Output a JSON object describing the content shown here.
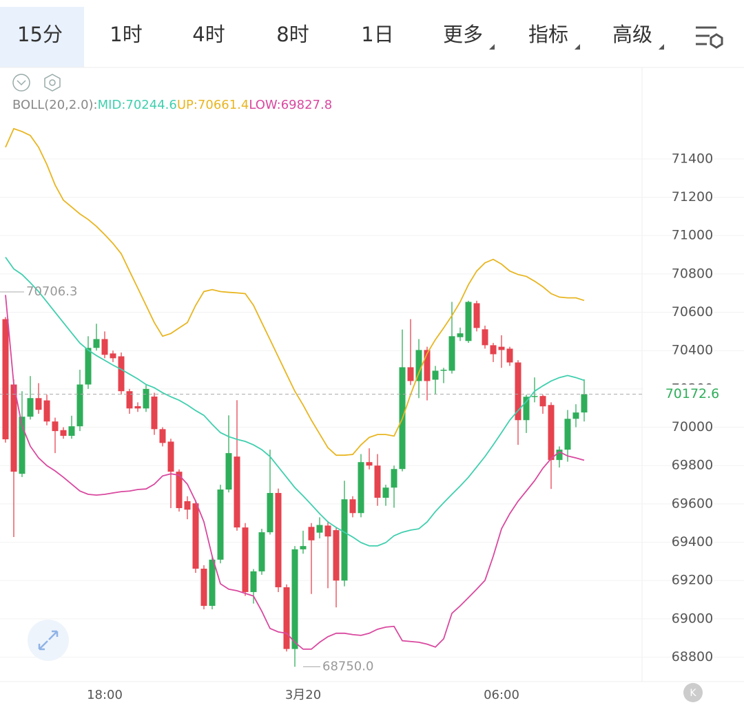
{
  "toolbar": {
    "tabs": [
      "15分",
      "1时",
      "4时",
      "8时",
      "1日",
      "更多",
      "指标",
      "高级"
    ],
    "selected": 0,
    "dropdown_tabs": [
      5,
      6,
      7
    ]
  },
  "k_button": "K",
  "chart_data": {
    "type": "candlestick",
    "indicator": "BOLL(20,2.0):",
    "categories": [
      null,
      null,
      null,
      null,
      null,
      null,
      null,
      null,
      null,
      null,
      null,
      null,
      "18:00",
      null,
      null,
      null,
      null,
      null,
      null,
      null,
      null,
      null,
      null,
      null,
      null,
      null,
      null,
      null,
      null,
      null,
      null,
      null,
      null,
      null,
      null,
      null,
      "3月20",
      null,
      null,
      null,
      null,
      null,
      null,
      null,
      null,
      null,
      null,
      null,
      null,
      null,
      null,
      null,
      null,
      null,
      null,
      null,
      null,
      null,
      null,
      null,
      "06:00",
      null,
      null,
      null,
      null,
      null,
      null,
      null,
      null,
      null,
      null
    ],
    "open": [
      70564,
      70223,
      69757,
      70055,
      70152,
      70140,
      70030,
      69985,
      69955,
      70005,
      70223,
      70414,
      70460,
      70385,
      70370,
      70188,
      70110,
      70098,
      70160,
      69990,
      69925,
      69768,
      69614,
      69603,
      69262,
      69068,
      69309,
      69675,
      69847,
      69477,
      69140,
      69248,
      69452,
      69657,
      69165,
      68843,
      69363,
      69480,
      69450,
      69487,
      69463,
      69200,
      69624,
      69552,
      69818,
      69800,
      69632,
      69685,
      69782,
      70313,
      70241,
      70403,
      70248,
      70295,
      70295,
      70470,
      70450,
      70647,
      70511,
      70428,
      70420,
      70410,
      70338,
      70037,
      70159,
      70163,
      70116,
      69829,
      69883,
      70044,
      70077
    ],
    "high": [
      70575,
      70250,
      70188,
      70267,
      70230,
      70170,
      70050,
      70000,
      70060,
      70300,
      70475,
      70540,
      70500,
      70400,
      70390,
      70200,
      70130,
      70220,
      70180,
      70000,
      69940,
      69780,
      69640,
      69620,
      69280,
      69330,
      69700,
      70062,
      70141,
      69500,
      69260,
      69470,
      69883,
      69680,
      69180,
      69380,
      69460,
      69500,
      69530,
      69510,
      69480,
      69721,
      69640,
      69860,
      69890,
      69860,
      69700,
      69800,
      70510,
      70564,
      70460,
      70420,
      70320,
      70310,
      70654,
      70520,
      70660,
      70660,
      70530,
      70440,
      70480,
      70420,
      70350,
      70170,
      70260,
      70170,
      70130,
      69900,
      70090,
      70120,
      70250
    ],
    "low": [
      69920,
      69427,
      69740,
      70040,
      70070,
      70010,
      69865,
      69940,
      69940,
      69980,
      70200,
      70400,
      70360,
      70340,
      70170,
      70070,
      70080,
      70080,
      69960,
      69900,
      69578,
      69560,
      69520,
      69240,
      69050,
      69050,
      69290,
      69660,
      69460,
      69120,
      69080,
      69230,
      69440,
      69140,
      68830,
      68750,
      69340,
      69130,
      69420,
      69160,
      69060,
      69170,
      69530,
      69530,
      69780,
      69590,
      69590,
      69580,
      69770,
      70220,
      70152,
      70140,
      70170,
      70230,
      70280,
      70450,
      70440,
      70500,
      70410,
      70340,
      70310,
      70320,
      69908,
      69970,
      70130,
      70070,
      69678,
      69790,
      69820,
      70000,
      70030
    ],
    "close": [
      69937,
      69768,
      70055,
      70152,
      70091,
      70030,
      69980,
      69955,
      70005,
      70223,
      70414,
      70460,
      70378,
      70360,
      70188,
      70098,
      70098,
      70200,
      69990,
      69918,
      69768,
      69578,
      69570,
      69262,
      69068,
      69309,
      69675,
      69865,
      69477,
      69140,
      69248,
      69452,
      69657,
      69165,
      68843,
      69363,
      69380,
      69410,
      69490,
      69430,
      69200,
      69624,
      69552,
      69818,
      69800,
      69632,
      69685,
      69782,
      70313,
      70241,
      70403,
      70241,
      70295,
      70300,
      70475,
      70490,
      70654,
      70518,
      70428,
      70381,
      70403,
      70338,
      70037,
      70159,
      70163,
      70109,
      69829,
      69883,
      70044,
      70077,
      70172.6
    ],
    "up_color": "#2fae5a",
    "down_color": "#e5434e",
    "series": [
      {
        "name": "MID:",
        "color": "#3fcfae",
        "values": [
          70887,
          70826,
          70797,
          70754,
          70708,
          70654,
          70600,
          70546,
          70492,
          70439,
          70403,
          70374,
          70349,
          70324,
          70302,
          70277,
          70252,
          70223,
          70206,
          70180,
          70159,
          70141,
          70116,
          70087,
          70062,
          70015,
          69972,
          69951,
          69937,
          69926,
          69908,
          69883,
          69847,
          69793,
          69739,
          69685,
          69642,
          69596,
          69549,
          69506,
          69477,
          69452,
          69427,
          69398,
          69381,
          69381,
          69398,
          69434,
          69452,
          69463,
          69470,
          69506,
          69560,
          69606,
          69650,
          69693,
          69739,
          69793,
          69847,
          69908,
          69972,
          70037,
          70087,
          70134,
          70188,
          70216,
          70241,
          70259,
          70270,
          70259,
          70244.6
        ]
      },
      {
        "name": "UP:",
        "color": "#e8b520",
        "values": [
          71461,
          71558,
          71543,
          71522,
          71461,
          71371,
          71264,
          71185,
          71149,
          71113,
          71084,
          71048,
          71005,
          70959,
          70905,
          70815,
          70726,
          70636,
          70546,
          70475,
          70489,
          70518,
          70546,
          70636,
          70708,
          70718,
          70708,
          70704,
          70701,
          70697,
          70636,
          70546,
          70457,
          70367,
          70277,
          70188,
          70116,
          70037,
          69965,
          69893,
          69854,
          69854,
          69858,
          69908,
          69947,
          69962,
          69962,
          69954,
          70044,
          70170,
          70284,
          70385,
          70457,
          70518,
          70582,
          70654,
          70744,
          70815,
          70858,
          70876,
          70851,
          70815,
          70797,
          70787,
          70762,
          70733,
          70697,
          70679,
          70675,
          70675,
          70661.4
        ]
      },
      {
        "name": "LOW:",
        "color": "#d9489f",
        "values": [
          70690,
          70223,
          70008,
          69901,
          69840,
          69800,
          69772,
          69739,
          69703,
          69667,
          69650,
          69646,
          69650,
          69657,
          69664,
          69667,
          69675,
          69678,
          69703,
          69746,
          69757,
          69750,
          69703,
          69614,
          69506,
          69327,
          69183,
          69155,
          69147,
          69133,
          69119,
          69040,
          68950,
          68932,
          68925,
          68878,
          68842,
          68842,
          68878,
          68907,
          68925,
          68925,
          68918,
          68914,
          68925,
          68946,
          68957,
          68961,
          68886,
          68882,
          68878,
          68868,
          68853,
          68896,
          69029,
          69068,
          69111,
          69155,
          69201,
          69327,
          69470,
          69549,
          69614,
          69667,
          69721,
          69786,
          69836,
          69872,
          69850,
          69840,
          69827.8
        ]
      }
    ],
    "ylim": [
      68680,
      71870
    ],
    "yticks": [
      68800,
      69000,
      69200,
      69400,
      69600,
      69800,
      70000,
      70200,
      70400,
      70600,
      70800,
      71000,
      71200,
      71400
    ],
    "grid": true,
    "annotations": [
      70706.3,
      {
        "value": 68750,
        "label": "68750.0"
      }
    ]
  }
}
